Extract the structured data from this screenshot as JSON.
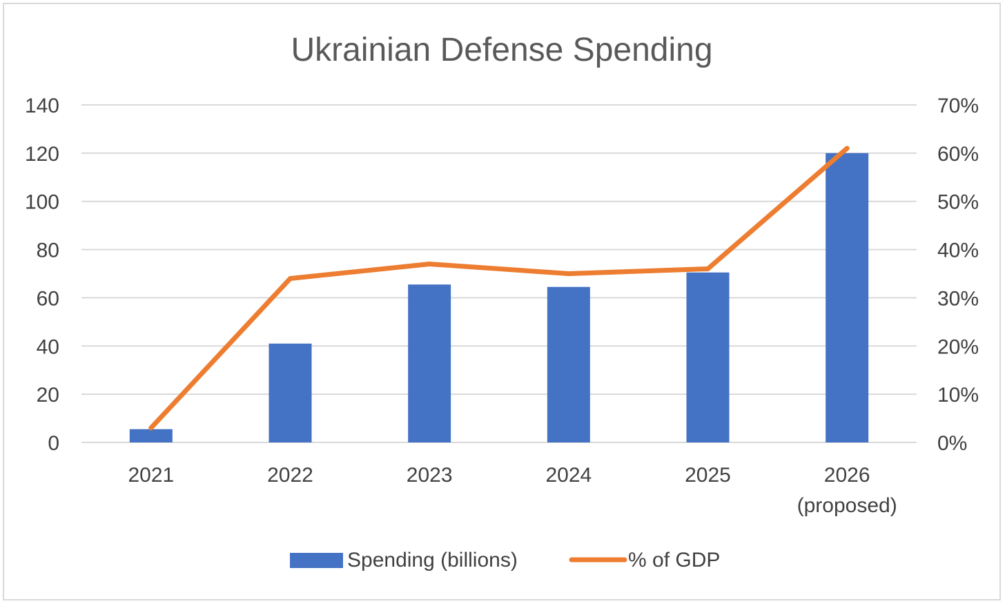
{
  "chart_data": {
    "type": "bar",
    "title": "Ukrainian Defense Spending",
    "categories": [
      [
        "2021"
      ],
      [
        "2022"
      ],
      [
        "2023"
      ],
      [
        "2024"
      ],
      [
        "2025"
      ],
      [
        "2026",
        "(proposed)"
      ]
    ],
    "series": [
      {
        "name": "Spending (billions)",
        "type": "bar",
        "axis": "left",
        "color": "#4472c4",
        "values": [
          5.5,
          41,
          65.5,
          64.5,
          70.5,
          120
        ]
      },
      {
        "name": "% of GDP",
        "type": "line",
        "axis": "right",
        "color": "#ed7d31",
        "values": [
          3,
          34,
          37,
          35,
          36,
          61
        ]
      }
    ],
    "y_left": {
      "ylim": [
        0,
        140
      ],
      "ticks": [
        "0",
        "20",
        "40",
        "60",
        "80",
        "100",
        "120",
        "140"
      ]
    },
    "y_right": {
      "ylim": [
        0,
        70
      ],
      "ticks": [
        "0%",
        "10%",
        "20%",
        "30%",
        "40%",
        "50%",
        "60%",
        "70%"
      ]
    },
    "grid": true,
    "legend": "bottom"
  }
}
